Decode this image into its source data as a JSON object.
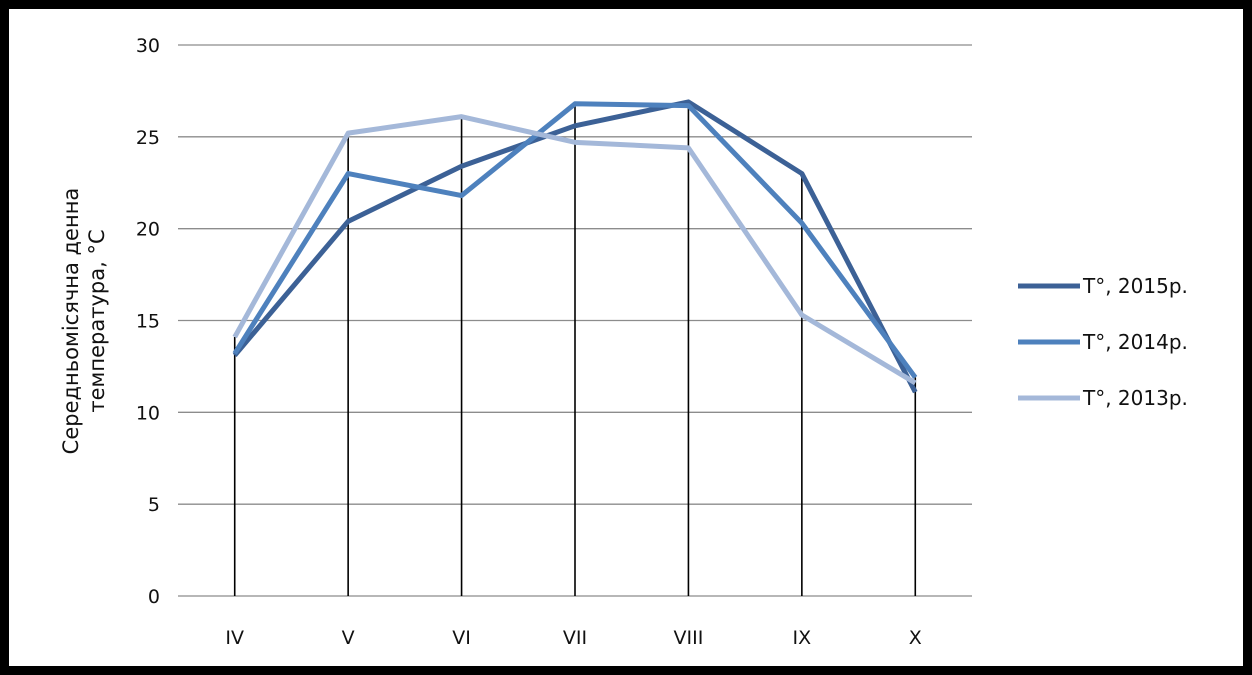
{
  "chart_data": {
    "type": "line",
    "title": "",
    "xlabel": "",
    "ylabel": "Середньомісячна  денна температура,  °C",
    "ylabel_lines": [
      "Середньомісячна  денна",
      "температура,  °C"
    ],
    "categories": [
      "IV",
      "V",
      "VI",
      "VII",
      "VIII",
      "IX",
      "X"
    ],
    "ylim": [
      0,
      30
    ],
    "yticks": [
      0,
      5,
      10,
      15,
      20,
      25,
      30
    ],
    "grid": "horizontal",
    "drop_lines": true,
    "legend_position": "right",
    "series": [
      {
        "name": "T°, 2015р.",
        "color": "#3C6196",
        "values": [
          13.1,
          20.4,
          23.4,
          25.6,
          26.9,
          23.0,
          11.1
        ]
      },
      {
        "name": "T°, 2014р.",
        "color": "#4E81BD",
        "values": [
          13.2,
          23.0,
          21.8,
          26.8,
          26.7,
          20.3,
          11.9
        ]
      },
      {
        "name": "T°, 2013р.",
        "color": "#A4B8D9",
        "values": [
          14.1,
          25.2,
          26.1,
          24.7,
          24.4,
          15.3,
          11.6
        ]
      }
    ]
  }
}
